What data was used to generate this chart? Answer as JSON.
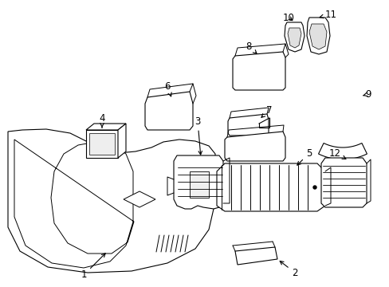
{
  "bg_color": "#ffffff",
  "lc": "#000000",
  "lw": 0.8
}
